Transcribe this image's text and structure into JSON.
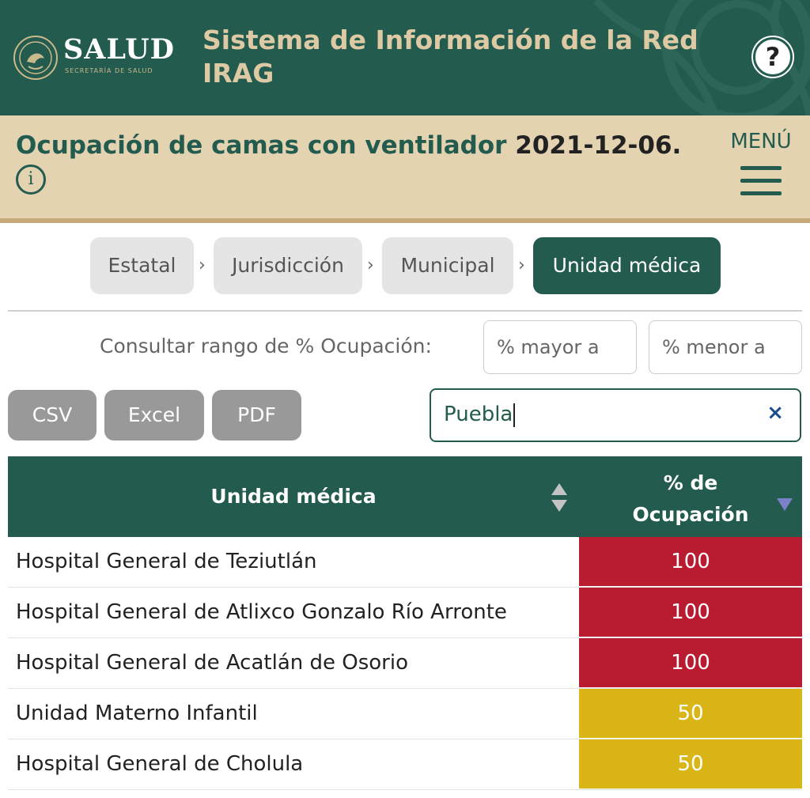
{
  "header": {
    "brand": "SALUD",
    "brand_sub": "SECRETARÍA DE SALUD",
    "app_title": "Sistema de Información de la Red IRAG",
    "help_label": "?"
  },
  "subheader": {
    "title": "Ocupación de camas con ventilador",
    "date": "2021-12-06.",
    "info_icon": "i",
    "menu_label": "MENÚ"
  },
  "breadcrumb": {
    "items": [
      {
        "label": "Estatal"
      },
      {
        "label": "Jurisdicción"
      },
      {
        "label": "Municipal"
      },
      {
        "label": "Unidad médica"
      }
    ],
    "separator": "›",
    "active_index": 3
  },
  "filters": {
    "range_label": "Consultar rango de % Ocupación:",
    "min_placeholder": "% mayor a",
    "max_placeholder": "% menor a"
  },
  "export": {
    "csv": "CSV",
    "excel": "Excel",
    "pdf": "PDF"
  },
  "search": {
    "value": "Puebla",
    "clear_icon": "×"
  },
  "table": {
    "col_name": "Unidad médica",
    "col_pct_line1": "% de",
    "col_pct_line2": "Ocupación",
    "rows": [
      {
        "name": "Hospital General de Teziutlán",
        "pct": "100",
        "color": "#b91c30"
      },
      {
        "name": "Hospital General de Atlixco Gonzalo Río Arronte",
        "pct": "100",
        "color": "#b91c30"
      },
      {
        "name": "Hospital General de Acatlán de Osorio",
        "pct": "100",
        "color": "#b91c30"
      },
      {
        "name": "Unidad Materno Infantil",
        "pct": "50",
        "color": "#d9b516"
      },
      {
        "name": "Hospital General de Cholula",
        "pct": "50",
        "color": "#d9b516"
      }
    ]
  },
  "colors": {
    "brand_green": "#235b4e",
    "beige": "#e4d3b1",
    "gold_text": "#ddc9a3",
    "high": "#b91c30",
    "medium": "#d9b516"
  }
}
